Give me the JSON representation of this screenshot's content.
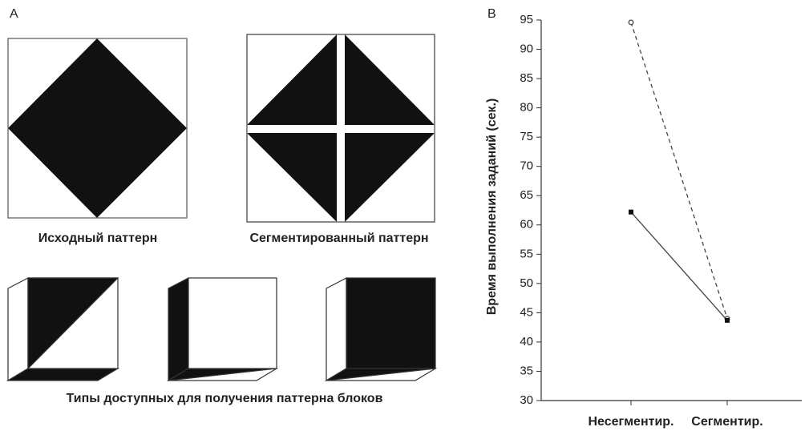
{
  "panel_a": {
    "label": "A",
    "original_caption": "Исходный паттерн",
    "segmented_caption": "Сегментированный паттерн",
    "blocks_caption": "Типы доступных для получения паттерна блоков"
  },
  "chart_data": {
    "type": "line",
    "panel_label": "B",
    "y_label": "Время выполнения заданий (сек.)",
    "categories": [
      "Несегментир.",
      "Сегментир."
    ],
    "series": [
      {
        "color": "#444444",
        "dash": true,
        "marker": "circle",
        "values": [
          94.6,
          44.0
        ]
      },
      {
        "color": "#444444",
        "dash": false,
        "marker": "square",
        "values": [
          62.2,
          43.7
        ]
      }
    ],
    "ylim": [
      30,
      95
    ],
    "yticks": [
      30,
      35,
      40,
      45,
      50,
      55,
      60,
      65,
      70,
      75,
      80,
      85,
      90,
      95
    ]
  }
}
